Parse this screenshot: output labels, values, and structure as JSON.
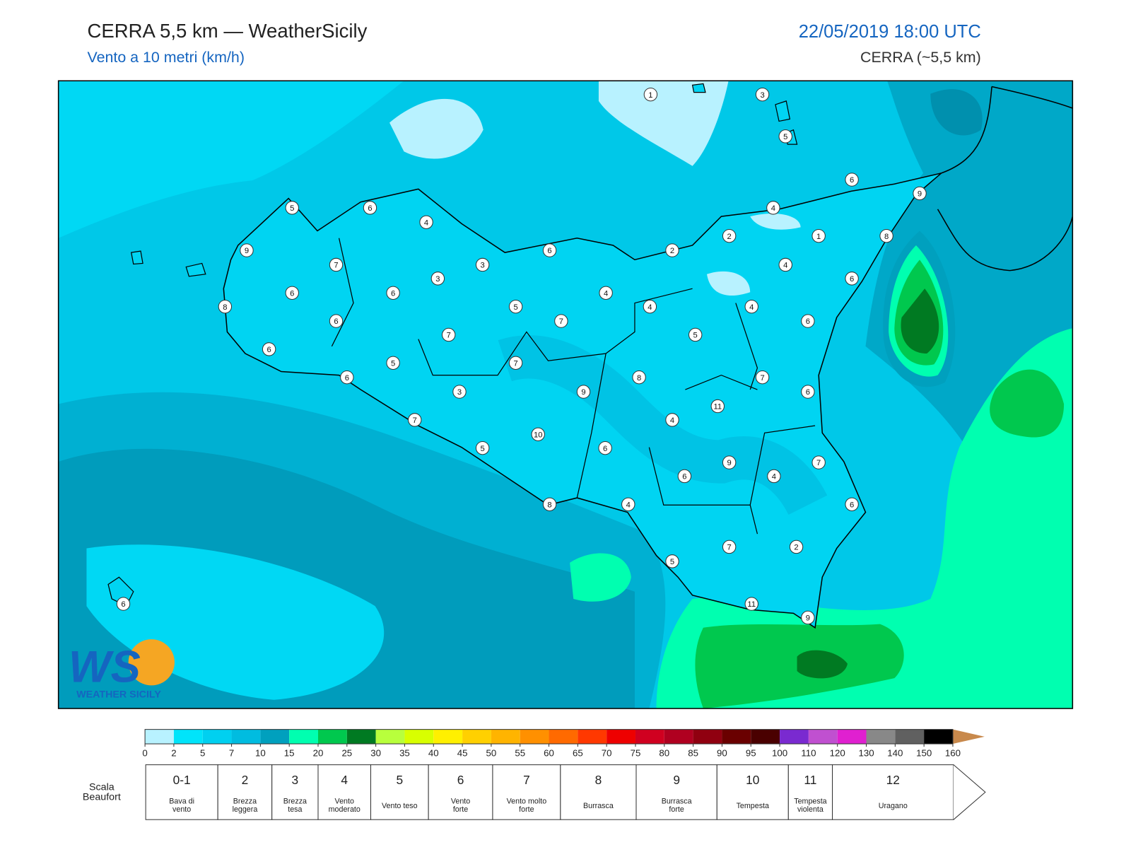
{
  "header": {
    "title": "CERRA 5,5 km — WeatherSicily",
    "subtitle": "Vento a 10 metri (km/h)",
    "datetime": "22/05/2019 18:00 UTC",
    "model": "CERRA (~5,5 km)"
  },
  "logo": {
    "mark": "WS",
    "name": "WEATHER SICILY"
  },
  "stations": [
    1,
    3,
    5,
    6,
    9,
    4,
    8,
    1,
    2,
    2,
    4,
    6,
    4,
    4,
    6,
    5,
    7,
    8,
    6,
    11,
    4,
    7,
    9,
    4,
    6,
    6,
    6,
    4,
    2,
    7,
    5,
    11,
    9,
    5,
    6,
    4,
    9,
    7,
    3,
    3,
    6,
    6,
    6,
    4,
    5,
    7,
    8,
    6,
    7,
    6,
    5,
    7,
    6,
    9,
    3,
    7,
    10,
    5,
    8,
    6
  ],
  "colorbar": {
    "ticks": [
      0,
      2,
      5,
      7,
      10,
      15,
      20,
      25,
      30,
      35,
      40,
      45,
      50,
      55,
      60,
      65,
      70,
      75,
      80,
      85,
      90,
      95,
      100,
      110,
      120,
      130,
      140,
      150,
      160
    ],
    "colors": [
      "#b8f2ff",
      "#00e4fa",
      "#00d0f0",
      "#00bce0",
      "#00a0be",
      "#00ffb0",
      "#00c84e",
      "#007a22",
      "#b8ff3c",
      "#d8ff00",
      "#fff000",
      "#ffd000",
      "#ffb400",
      "#ff9000",
      "#ff6a00",
      "#ff3800",
      "#ee0000",
      "#d00020",
      "#b00020",
      "#900010",
      "#6a0000",
      "#4a0000",
      "#7a2ad0",
      "#c050d0",
      "#e020d0",
      "#888888",
      "#606060",
      "#000000",
      "#8a4a2a",
      "#c87a3c"
    ],
    "extend_color": "#c8894c"
  },
  "beaufort": {
    "label": [
      "Scala",
      "Beaufort"
    ],
    "levels": [
      {
        "force": "0-1",
        "desc": [
          "Bava di",
          "vento"
        ]
      },
      {
        "force": 2,
        "desc": [
          "Brezza",
          "leggera"
        ]
      },
      {
        "force": 3,
        "desc": [
          "Brezza",
          "tesa"
        ]
      },
      {
        "force": 4,
        "desc": [
          "Vento",
          "moderato"
        ]
      },
      {
        "force": 5,
        "desc": [
          "Vento teso"
        ]
      },
      {
        "force": 6,
        "desc": [
          "Vento",
          "forte"
        ]
      },
      {
        "force": 7,
        "desc": [
          "Vento molto",
          "forte"
        ]
      },
      {
        "force": 8,
        "desc": [
          "Burrasca"
        ]
      },
      {
        "force": 9,
        "desc": [
          "Burrasca",
          "forte"
        ]
      },
      {
        "force": 10,
        "desc": [
          "Tempesta"
        ]
      },
      {
        "force": 11,
        "desc": [
          "Tempesta",
          "violenta"
        ]
      },
      {
        "force": 12,
        "desc": [
          "Uragano"
        ]
      }
    ]
  }
}
